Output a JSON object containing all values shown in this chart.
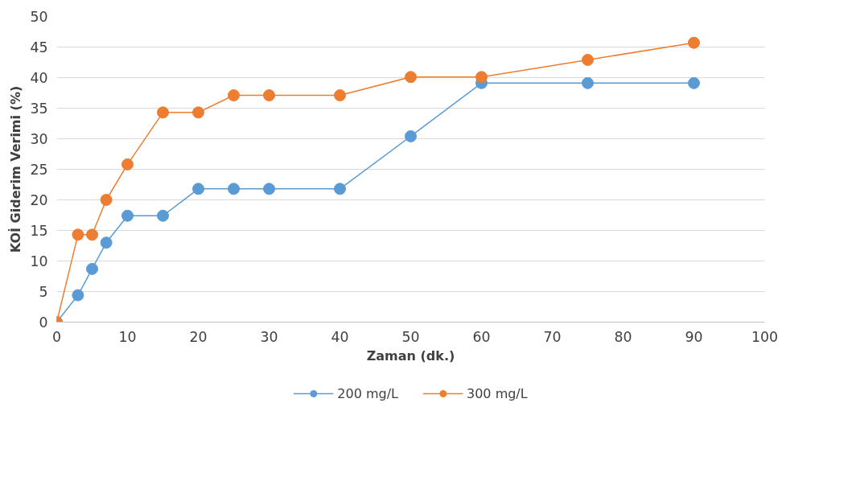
{
  "chart_data": {
    "type": "line",
    "xlabel": "Zaman (dk.)",
    "ylabel": "KOİ Giderim Verimi (%)",
    "x": [
      0,
      3,
      5,
      7,
      10,
      15,
      20,
      25,
      30,
      40,
      50,
      60,
      75,
      90
    ],
    "series": [
      {
        "name": "200 mg/L",
        "color": "#5b9bd5",
        "values": [
          0,
          4.4,
          8.7,
          13.0,
          17.4,
          17.4,
          21.8,
          21.8,
          21.8,
          21.8,
          30.4,
          39.1,
          39.1,
          39.1
        ]
      },
      {
        "name": "300 mg/L",
        "color": "#ed7d31",
        "values": [
          0,
          14.3,
          14.3,
          20.0,
          25.8,
          34.3,
          34.3,
          37.1,
          37.1,
          37.1,
          40.1,
          40.1,
          42.9,
          45.7
        ]
      }
    ],
    "xlim": [
      0,
      100
    ],
    "xticks": [
      0,
      10,
      20,
      30,
      40,
      50,
      60,
      70,
      80,
      90,
      100
    ],
    "ylim": [
      0,
      50
    ],
    "yticks": [
      0,
      5,
      10,
      15,
      20,
      25,
      30,
      35,
      40,
      45,
      50
    ],
    "grid": "y",
    "legend": "bottom",
    "marker": "circle",
    "line_style": "solid"
  }
}
